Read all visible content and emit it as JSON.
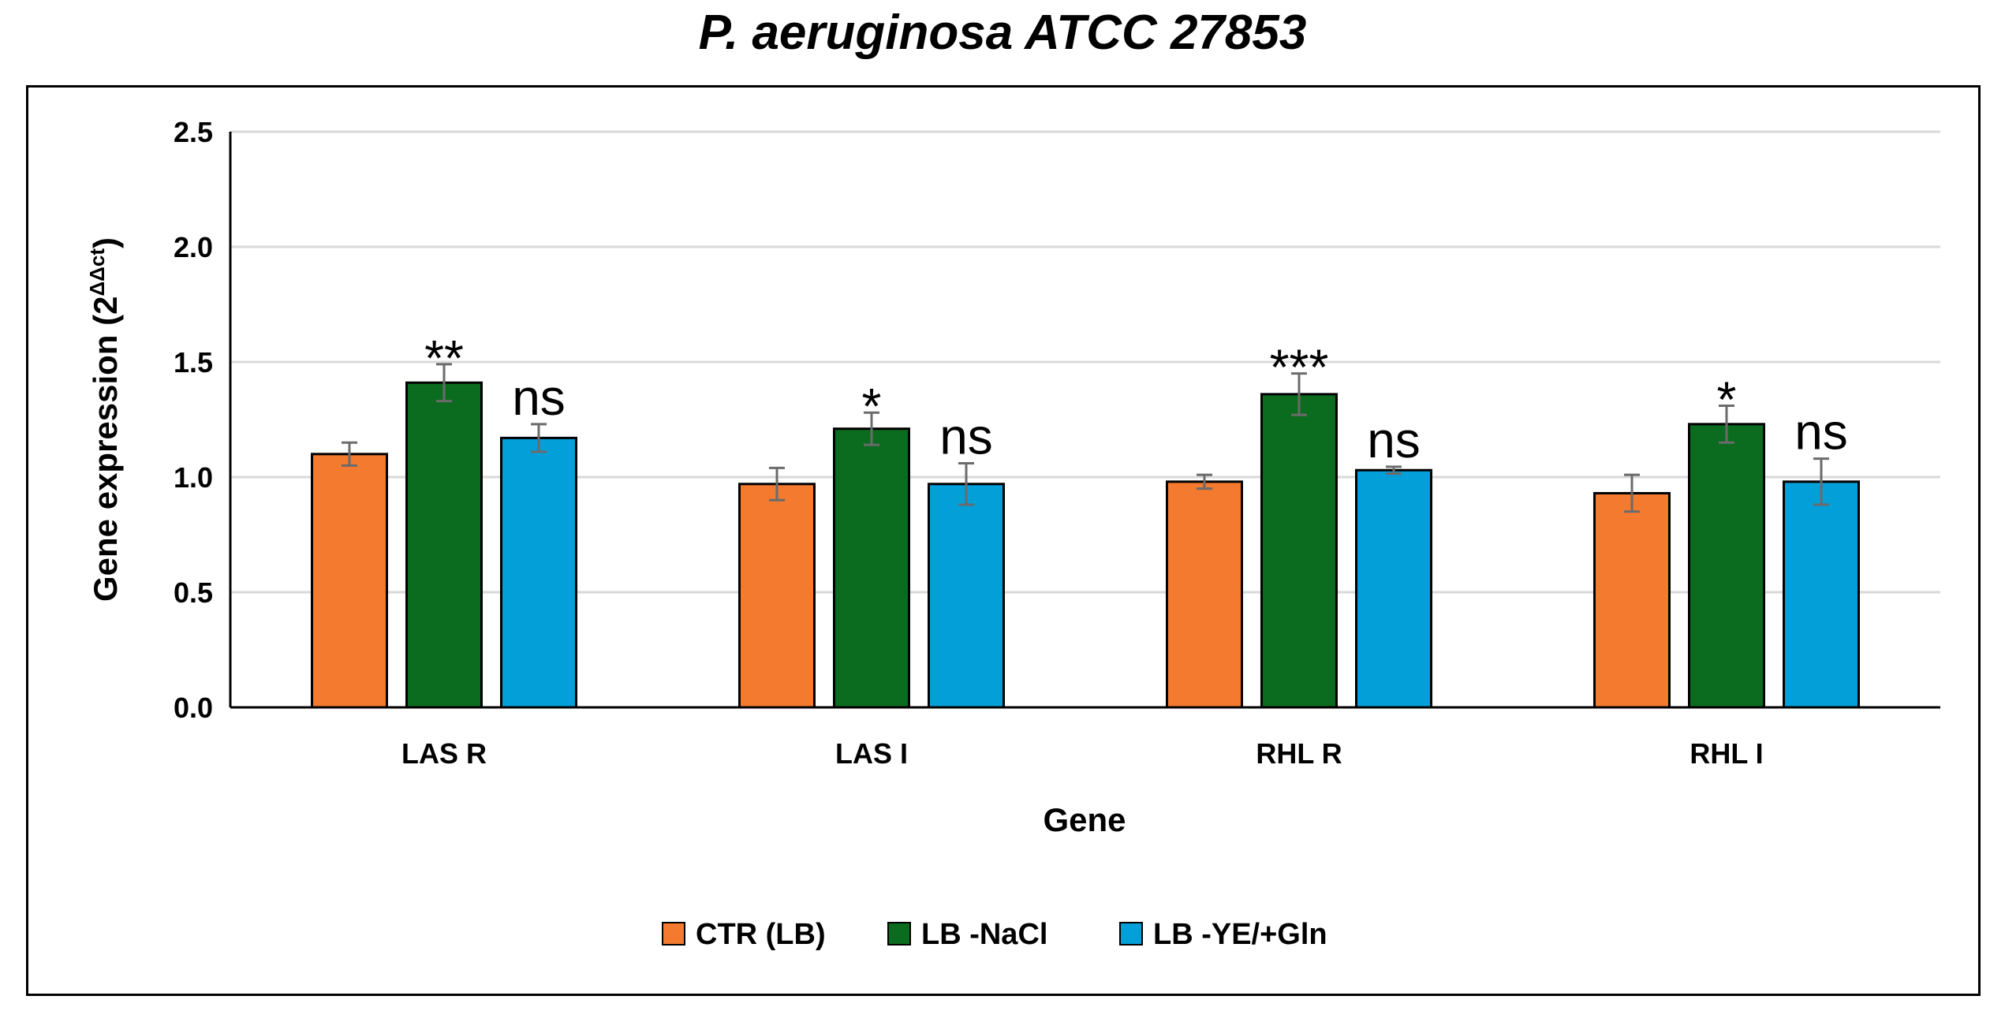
{
  "chart_data": {
    "type": "bar",
    "title": "P. aeruginosa ATCC 27853",
    "xlabel": "Gene",
    "ylabel": "Gene expression (2",
    "ylabel_superscript": "ΔΔct",
    "ylabel_suffix": ")",
    "ylim": [
      0,
      2.5
    ],
    "yticks": [
      "0.0",
      "0.5",
      "1.0",
      "1.5",
      "2.0",
      "2.5"
    ],
    "ytick_values": [
      0,
      0.5,
      1.0,
      1.5,
      2.0,
      2.5
    ],
    "grid": true,
    "legend_position": "bottom",
    "categories": [
      "LAS R",
      "LAS I",
      "RHL R",
      "RHL I"
    ],
    "series": [
      {
        "name": "CTR (LB)",
        "color": "#F47A2F",
        "values": [
          1.1,
          0.97,
          0.98,
          0.93
        ],
        "errors": [
          0.05,
          0.07,
          0.03,
          0.08
        ],
        "annotations": [
          "",
          "",
          "",
          ""
        ]
      },
      {
        "name": "LB -NaCl",
        "color": "#0B6B1E",
        "values": [
          1.41,
          1.21,
          1.36,
          1.23
        ],
        "errors": [
          0.08,
          0.07,
          0.09,
          0.08
        ],
        "annotations": [
          "**",
          "*",
          "***",
          "*"
        ]
      },
      {
        "name": "LB -YE/+Gln",
        "color": "#039FD8",
        "values": [
          1.17,
          0.97,
          1.03,
          0.98
        ],
        "errors": [
          0.06,
          0.09,
          0.015,
          0.1
        ],
        "annotations": [
          "ns",
          "ns",
          "ns",
          "ns"
        ]
      }
    ]
  }
}
